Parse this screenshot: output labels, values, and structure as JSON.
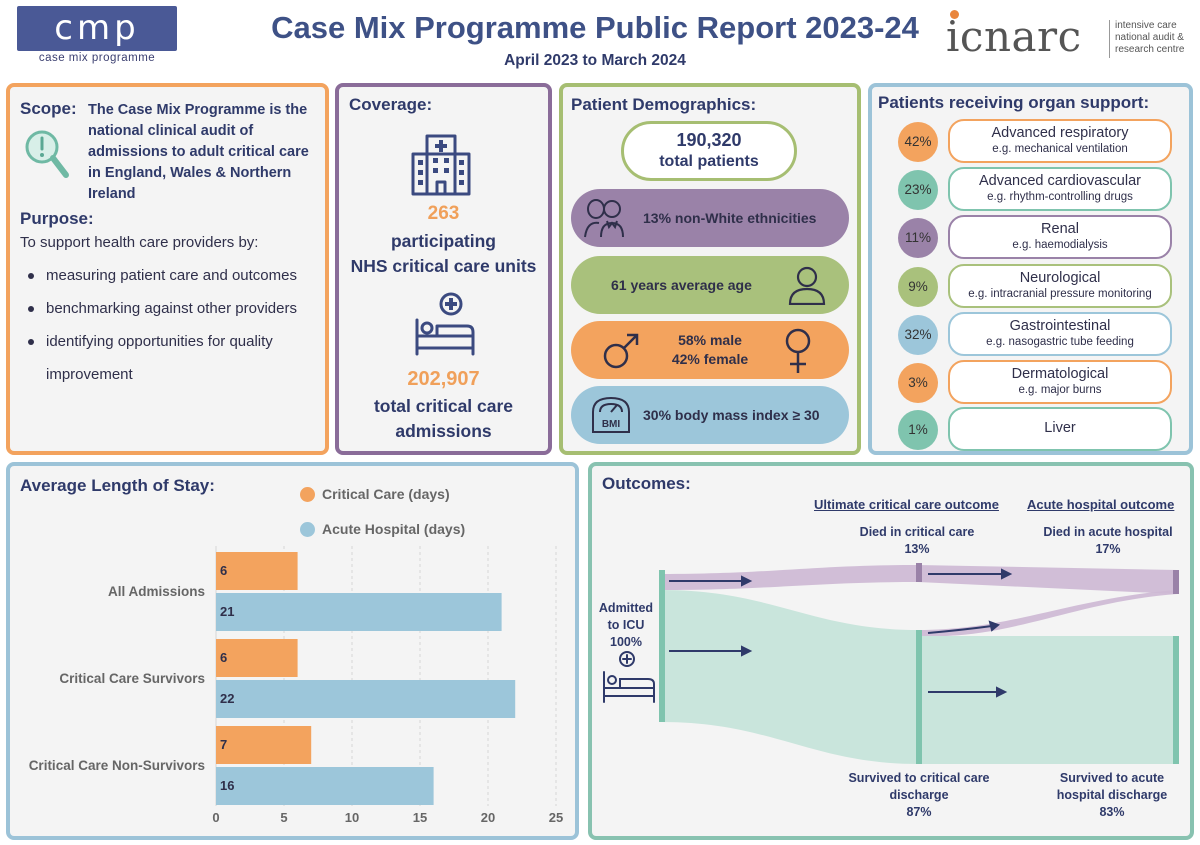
{
  "header": {
    "cmp_logo_text": "cmp",
    "cmp_logo_sub": "case mix programme",
    "title": "Case Mix Programme Public Report 2023-24",
    "subtitle": "April 2023 to March 2024",
    "icnarc_word": "icnarc",
    "icnarc_tag_1": "intensive care",
    "icnarc_tag_2": "national audit &",
    "icnarc_tag_3": "research centre"
  },
  "scope": {
    "scope_heading": "Scope:",
    "scope_text": "The Case Mix Programme is the national clinical audit of admissions to adult critical care in England, Wales & Northern Ireland",
    "purpose_heading": "Purpose:",
    "purpose_intro": "To support health care providers by:",
    "purpose_items": [
      "measuring patient care and outcomes",
      "benchmarking against other providers",
      "identifying opportunities for quality improvement"
    ]
  },
  "coverage": {
    "heading": "Coverage:",
    "units_value": "263",
    "units_label_1": "participating",
    "units_label_2": "NHS critical care units",
    "admissions_value": "202,907",
    "admissions_label_1": "total critical care",
    "admissions_label_2": "admissions"
  },
  "demographics": {
    "heading": "Patient Demographics:",
    "total_value": "190,320",
    "total_label": "total patients",
    "ethnicity": "13% non-White ethnicities",
    "age": "61 years average age",
    "male": "58% male",
    "female": "42% female",
    "bmi": "30% body mass index ≥ 30",
    "bmi_icon_text": "BMI"
  },
  "organ_support": {
    "heading": "Patients receiving organ support:",
    "items": [
      {
        "pct": "42%",
        "name": "Advanced respiratory",
        "example": "e.g. mechanical ventilation",
        "color": "#f3a35e"
      },
      {
        "pct": "23%",
        "name": "Advanced cardiovascular",
        "example": "e.g. rhythm-controlling drugs",
        "color": "#7fc4ae"
      },
      {
        "pct": "11%",
        "name": "Renal",
        "example": "e.g. haemodialysis",
        "color": "#9a82a8"
      },
      {
        "pct": "9%",
        "name": "Neurological",
        "example": "e.g. intracranial pressure monitoring",
        "color": "#a9c17c"
      },
      {
        "pct": "32%",
        "name": "Gastrointestinal",
        "example": "e.g. nasogastric tube feeding",
        "color": "#9cc6da"
      },
      {
        "pct": "3%",
        "name": "Dermatological",
        "example": "e.g. major burns",
        "color": "#f3a35e"
      },
      {
        "pct": "1%",
        "name": "Liver",
        "example": "",
        "color": "#7fc4ae"
      }
    ]
  },
  "length_of_stay": {
    "heading": "Average Length of Stay:"
  },
  "chart_data": {
    "type": "bar",
    "orientation": "horizontal",
    "categories": [
      "All Admissions",
      "Critical Care Survivors",
      "Critical Care Non-Survivors"
    ],
    "series": [
      {
        "name": "Critical Care (days)",
        "values": [
          6,
          6,
          7
        ],
        "color": "#f3a35e"
      },
      {
        "name": "Acute Hospital (days)",
        "values": [
          21,
          22,
          16
        ],
        "color": "#9cc6da"
      }
    ],
    "xlim": [
      0,
      25
    ],
    "xticks": [
      0,
      5,
      10,
      15,
      20,
      25
    ],
    "grid": true,
    "legend_position": "top"
  },
  "outcomes": {
    "heading": "Outcomes:",
    "col1_heading": "Ultimate critical care outcome",
    "col2_heading": "Acute hospital outcome",
    "admitted_1": "Admitted",
    "admitted_2": "to ICU",
    "admitted_pct": "100%",
    "died_cc_label": "Died in critical care",
    "died_cc_pct": "13%",
    "died_ah_label": "Died in acute hospital",
    "died_ah_pct": "17%",
    "surv_cc_1": "Survived to critical care",
    "surv_cc_2": "discharge",
    "surv_cc_pct": "87%",
    "surv_ah_1": "Survived to acute",
    "surv_ah_2": "hospital discharge",
    "surv_ah_pct": "83%"
  }
}
